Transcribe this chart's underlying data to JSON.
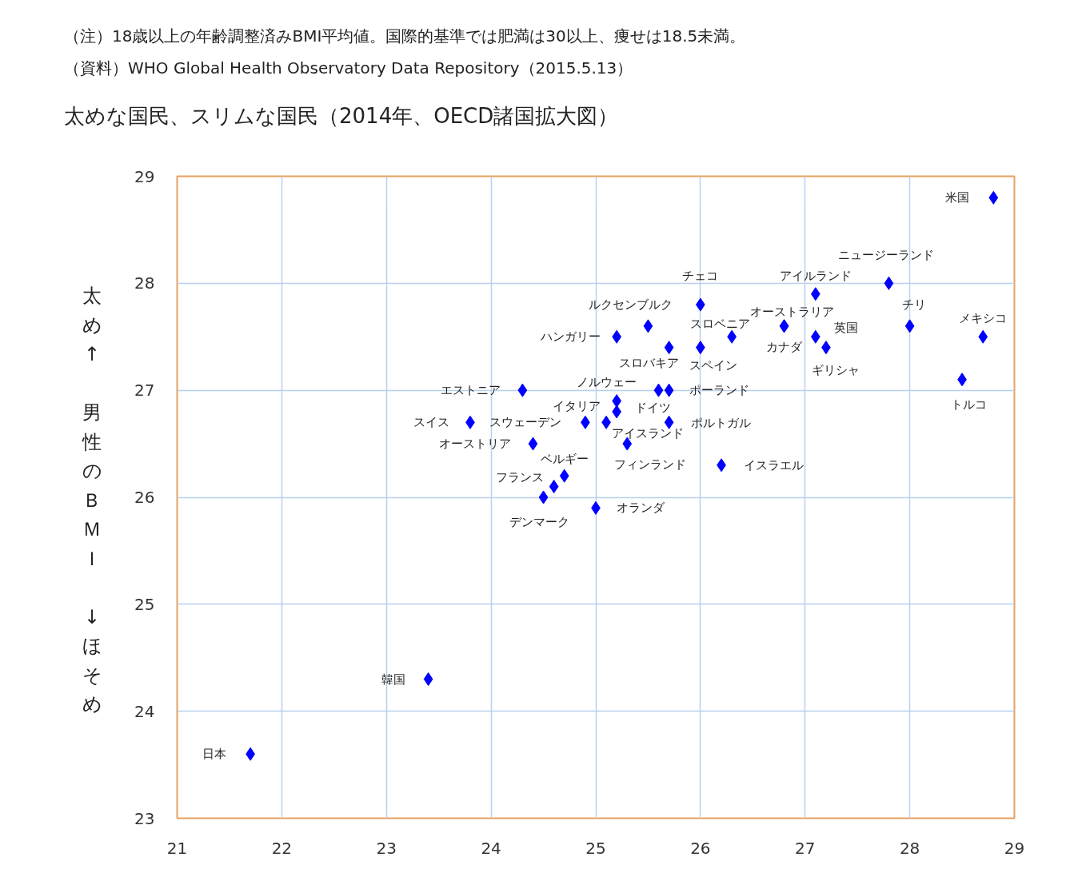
{
  "chart_data": {
    "type": "scatter",
    "title": "太めな国民、スリムな国民（2014年、OECD諸国拡大図）",
    "ylabel": "太め↑　男性のＢＭＩ　↓ほそめ",
    "x": [
      28.8,
      27.8,
      28.0,
      28.7,
      28.5,
      27.1,
      26.8,
      26.8,
      27.1,
      27.2,
      26.0,
      26.3,
      26.0,
      25.5,
      25.2,
      25.7,
      25.6,
      25.7,
      25.2,
      25.2,
      24.9,
      25.1,
      25.7,
      25.3,
      26.2,
      24.7,
      24.6,
      24.5,
      25.0,
      24.3,
      23.8,
      24.4,
      23.4,
      21.7
    ],
    "values": [
      28.8,
      28.0,
      27.6,
      27.5,
      27.1,
      27.9,
      27.6,
      27.6,
      27.5,
      27.4,
      27.8,
      27.5,
      27.4,
      27.6,
      27.5,
      27.4,
      27.0,
      27.0,
      26.9,
      26.8,
      26.7,
      26.7,
      26.7,
      26.5,
      26.3,
      26.2,
      26.1,
      26.0,
      25.9,
      27.0,
      26.7,
      26.5,
      24.3,
      23.6
    ],
    "color": "#0000ff",
    "marker": "diamond",
    "grid": true,
    "xlim": [
      21,
      29
    ],
    "xticks": [
      21,
      22,
      23,
      24,
      25,
      26,
      27,
      28,
      29
    ],
    "ylim": [
      23,
      29
    ],
    "yticks": [
      23,
      24,
      25,
      26,
      27,
      28,
      29
    ],
    "annotations": [
      "（注）18歳以上の年齢調整済みBMI平均値。国際的基準では肥満は30以上、痩せは18.5未満。",
      "（資料）WHO Global Health Observatory Data Repository（2015.5.13）",
      {
        "text": "米国",
        "x": 28.8,
        "y": 28.8
      },
      {
        "text": "ニュージーランド",
        "x": 27.8,
        "y": 28.0
      },
      {
        "text": "チリ",
        "x": 28.0,
        "y": 27.6
      },
      {
        "text": "メキシコ",
        "x": 28.7,
        "y": 27.5
      },
      {
        "text": "トルコ",
        "x": 28.5,
        "y": 27.1
      },
      {
        "text": "アイルランド",
        "x": 27.1,
        "y": 27.9
      },
      {
        "text": "オーストラリア",
        "x": 26.8,
        "y": 27.6
      },
      {
        "text": "カナダ",
        "x": 26.8,
        "y": 27.6
      },
      {
        "text": "英国",
        "x": 27.1,
        "y": 27.5
      },
      {
        "text": "ギリシャ",
        "x": 27.2,
        "y": 27.4
      },
      {
        "text": "チェコ",
        "x": 26.0,
        "y": 27.8
      },
      {
        "text": "スロベニア",
        "x": 26.3,
        "y": 27.5
      },
      {
        "text": "スペイン",
        "x": 26.0,
        "y": 27.4
      },
      {
        "text": "ルクセンブルク",
        "x": 25.5,
        "y": 27.6
      },
      {
        "text": "ハンガリー",
        "x": 25.2,
        "y": 27.5
      },
      {
        "text": "スロバキア",
        "x": 25.7,
        "y": 27.4
      },
      {
        "text": "ノルウェー",
        "x": 25.6,
        "y": 27.0
      },
      {
        "text": "ポーランド",
        "x": 25.7,
        "y": 27.0
      },
      {
        "text": "イタリア",
        "x": 25.2,
        "y": 26.9
      },
      {
        "text": "ドイツ",
        "x": 25.2,
        "y": 26.8
      },
      {
        "text": "スウェーデン",
        "x": 24.9,
        "y": 26.7
      },
      {
        "text": "アイスランド",
        "x": 25.1,
        "y": 26.7
      },
      {
        "text": "ポルトガル",
        "x": 25.7,
        "y": 26.7
      },
      {
        "text": "フィンランド",
        "x": 25.3,
        "y": 26.5
      },
      {
        "text": "イスラエル",
        "x": 26.2,
        "y": 26.3
      },
      {
        "text": "ベルギー",
        "x": 24.7,
        "y": 26.2
      },
      {
        "text": "フランス",
        "x": 24.6,
        "y": 26.1
      },
      {
        "text": "デンマーク",
        "x": 24.5,
        "y": 26.0
      },
      {
        "text": "オランダ",
        "x": 25.0,
        "y": 25.9
      },
      {
        "text": "エストニア",
        "x": 24.3,
        "y": 27.0
      },
      {
        "text": "スイス",
        "x": 23.8,
        "y": 26.7
      },
      {
        "text": "オーストリア",
        "x": 24.4,
        "y": 26.5
      },
      {
        "text": "韓国",
        "x": 23.4,
        "y": 24.3
      },
      {
        "text": "日本",
        "x": 21.7,
        "y": 23.6
      }
    ]
  }
}
